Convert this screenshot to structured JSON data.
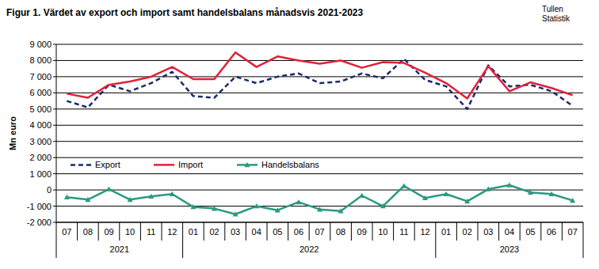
{
  "chart_data": {
    "type": "line",
    "title": "Figur 1. Värdet av export och import samt handelsbalans månadsvis 2021-2023",
    "annotations": [
      "Tullen",
      "Statistik"
    ],
    "y_label": "Mn euro",
    "categories": [
      "07",
      "08",
      "09",
      "10",
      "11",
      "12",
      "01",
      "02",
      "03",
      "04",
      "05",
      "06",
      "07",
      "08",
      "09",
      "10",
      "11",
      "12",
      "01",
      "02",
      "03",
      "04",
      "05",
      "06",
      "07"
    ],
    "category_groups": [
      {
        "label": "2021",
        "count": 6
      },
      {
        "label": "2022",
        "count": 12
      },
      {
        "label": "2023",
        "count": 7
      }
    ],
    "series": [
      {
        "name": "Export",
        "color": "#1b2a6b",
        "line_style": "dashed",
        "values": [
          5500,
          5100,
          6500,
          6100,
          6600,
          7300,
          5800,
          5700,
          7000,
          6600,
          7000,
          7200,
          6600,
          6700,
          7200,
          6900,
          8100,
          6800,
          6400,
          5000,
          7700,
          6400,
          6500,
          6100,
          5200
        ]
      },
      {
        "name": "Import",
        "color": "#e2203a",
        "line_style": "solid",
        "values": [
          5950,
          5700,
          6500,
          6700,
          7000,
          7600,
          6850,
          6850,
          8500,
          7600,
          8250,
          8000,
          7800,
          8000,
          7550,
          7900,
          7850,
          7250,
          6600,
          5650,
          7650,
          6100,
          6650,
          6300,
          5850
        ]
      },
      {
        "name": "Handelsbalans",
        "color": "#2a9a80",
        "line_style": "solid",
        "marker": "triangle",
        "values": [
          -450,
          -600,
          50,
          -600,
          -400,
          -250,
          -1050,
          -1150,
          -1500,
          -1000,
          -1250,
          -750,
          -1200,
          -1300,
          -350,
          -1000,
          250,
          -500,
          -250,
          -700,
          50,
          300,
          -150,
          -250,
          -650
        ]
      }
    ],
    "ylim": [
      -2000,
      9000
    ],
    "yticks": [
      {
        "value": -2000,
        "label": "-2 000"
      },
      {
        "value": -1000,
        "label": "-1 000"
      },
      0,
      {
        "value": 1000,
        "label": "1 000"
      },
      {
        "value": 2000,
        "label": "2 000"
      },
      {
        "value": 3000,
        "label": "3 000"
      },
      {
        "value": 4000,
        "label": "4 000"
      },
      {
        "value": 5000,
        "label": "5 000"
      },
      {
        "value": 6000,
        "label": "6 000"
      },
      {
        "value": 7000,
        "label": "7 000"
      },
      {
        "value": 8000,
        "label": "8 000"
      },
      {
        "value": 9000,
        "label": "9 000"
      }
    ],
    "grid": true,
    "legend": "lower left"
  }
}
